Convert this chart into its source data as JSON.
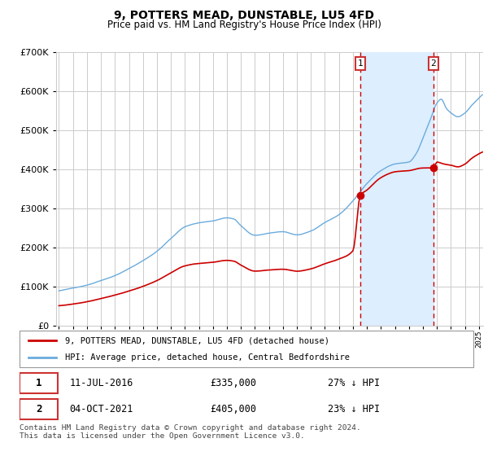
{
  "title": "9, POTTERS MEAD, DUNSTABLE, LU5 4FD",
  "subtitle": "Price paid vs. HM Land Registry's House Price Index (HPI)",
  "title_fontsize": 10,
  "subtitle_fontsize": 8.5,
  "ylim": [
    0,
    700000
  ],
  "yticks": [
    0,
    100000,
    200000,
    300000,
    400000,
    500000,
    600000,
    700000
  ],
  "xlim_start": 1994.8,
  "xlim_end": 2025.3,
  "sale1_x": 2016.53,
  "sale1_y": 335000,
  "sale2_x": 2021.75,
  "sale2_y": 405000,
  "sale1_date": "11-JUL-2016",
  "sale1_price": "£335,000",
  "sale1_hpi": "27% ↓ HPI",
  "sale2_date": "04-OCT-2021",
  "sale2_price": "£405,000",
  "sale2_hpi": "23% ↓ HPI",
  "hpi_color": "#6aabdc",
  "price_color": "#cc0000",
  "fill_color": "#ddeeff",
  "grid_color": "#cccccc",
  "background_color": "#ffffff",
  "legend_label_price": "9, POTTERS MEAD, DUNSTABLE, LU5 4FD (detached house)",
  "legend_label_hpi": "HPI: Average price, detached house, Central Bedfordshire",
  "footnote": "Contains HM Land Registry data © Crown copyright and database right 2024.\nThis data is licensed under the Open Government Licence v3.0."
}
